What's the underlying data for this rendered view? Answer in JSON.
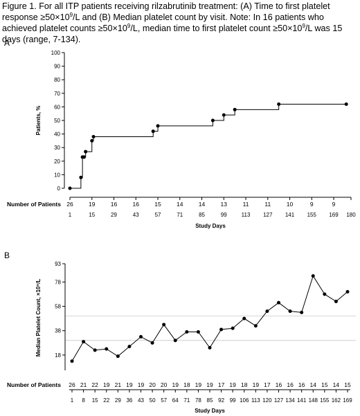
{
  "caption": {
    "part1": "Figure 1. For all ITP patients receiving rilzabrutinib treatment: (A) Time to first platelet response ≥50×10",
    "sup1": "9",
    "part2": "/L and (B) Median platelet count by visit. Note: In 16 patients who achieved platelet counts ≥50×10",
    "sup2": "9",
    "part3": "/L, median time to first platelet count ≥50×10",
    "sup3": "9",
    "part4": "/L was 15 days (range, 7-134)."
  },
  "chart_data": [
    {
      "panel": "A",
      "type": "line",
      "step": true,
      "xlabel": "Study Days",
      "ylabel": "Patients, %",
      "xlim": [
        1,
        180
      ],
      "ylim": [
        0,
        100
      ],
      "x_ticks": [
        1,
        15,
        29,
        43,
        57,
        71,
        85,
        99,
        113,
        127,
        141,
        155,
        169,
        180
      ],
      "y_ticks": [
        0,
        10,
        20,
        30,
        40,
        50,
        60,
        70,
        80,
        90,
        100
      ],
      "points": [
        {
          "x": 1,
          "y": 0
        },
        {
          "x": 8,
          "y": 8
        },
        {
          "x": 9,
          "y": 23
        },
        {
          "x": 10,
          "y": 23
        },
        {
          "x": 11,
          "y": 27
        },
        {
          "x": 15,
          "y": 35
        },
        {
          "x": 16,
          "y": 38
        },
        {
          "x": 54,
          "y": 42
        },
        {
          "x": 57,
          "y": 46
        },
        {
          "x": 92,
          "y": 50
        },
        {
          "x": 99,
          "y": 54
        },
        {
          "x": 106,
          "y": 58
        },
        {
          "x": 134,
          "y": 62
        },
        {
          "x": 177,
          "y": 62
        }
      ],
      "end_x": 178,
      "number_at_risk": {
        "title": "Number of Patients",
        "values": [
          "26",
          "19",
          "16",
          "16",
          "15",
          "14",
          "14",
          "13",
          "11",
          "11",
          "10",
          "9",
          "9"
        ]
      }
    },
    {
      "panel": "B",
      "type": "line",
      "xlabel": "Study Days",
      "ylabel": "Median Platelet Count, ×10⁹/L",
      "ylim": [
        10,
        93
      ],
      "y_ticks": [
        18,
        38,
        58,
        78,
        93
      ],
      "reference_lines": [
        30,
        50
      ],
      "categories": [
        "1",
        "8",
        "15",
        "22",
        "29",
        "36",
        "43",
        "50",
        "57",
        "64",
        "71",
        "78",
        "85",
        "92",
        "99",
        "106",
        "113",
        "120",
        "127",
        "134",
        "141",
        "148",
        "155",
        "162",
        "169"
      ],
      "values": [
        13,
        29,
        22,
        23,
        17,
        25,
        33,
        28,
        43,
        30,
        37,
        37,
        24,
        39,
        40,
        48,
        42,
        54,
        61,
        54,
        53,
        83,
        68,
        62,
        70
      ],
      "number_at_risk": {
        "title": "Number of Patients",
        "values": [
          "26",
          "21",
          "22",
          "19",
          "21",
          "19",
          "19",
          "20",
          "20",
          "19",
          "18",
          "19",
          "19",
          "17",
          "19",
          "18",
          "19",
          "17",
          "16",
          "16",
          "16",
          "14",
          "15",
          "14",
          "15"
        ]
      }
    }
  ],
  "panels": {
    "a": "A",
    "b": "B"
  },
  "colors": {
    "line": "#000000",
    "axis": "#000000",
    "reference": "#c8c8c8"
  }
}
